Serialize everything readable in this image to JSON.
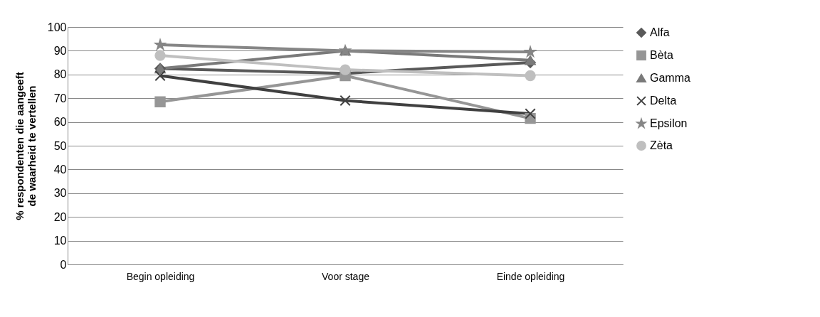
{
  "chart_data": {
    "type": "line",
    "ylabel": [
      "% respondenten die aangeeft",
      "de waarheid te vertellen"
    ],
    "categories": [
      "Begin opleiding",
      "Voor stage",
      "Einde opleiding"
    ],
    "series": [
      {
        "name": "Alfa",
        "color": "#595959",
        "marker": "diamond",
        "values": [
          82.5,
          80.5,
          85
        ]
      },
      {
        "name": "Bèta",
        "color": "#969696",
        "marker": "square",
        "values": [
          68.5,
          79.5,
          61.5
        ]
      },
      {
        "name": "Gamma",
        "color": "#7a7a7a",
        "marker": "triangle",
        "values": [
          82.5,
          90,
          86
        ]
      },
      {
        "name": "Delta",
        "color": "#404040",
        "marker": "cross",
        "values": [
          79.5,
          69,
          63.5
        ]
      },
      {
        "name": "Epsilon",
        "color": "#868686",
        "marker": "star",
        "values": [
          92.5,
          90,
          89.5
        ]
      },
      {
        "name": "Zèta",
        "color": "#bfbfbf",
        "marker": "circle",
        "values": [
          88,
          82,
          79.5
        ]
      }
    ],
    "ylim": [
      0,
      100
    ],
    "yticks": [
      0,
      10,
      20,
      30,
      40,
      50,
      60,
      70,
      80,
      90,
      100
    ],
    "grid": "y",
    "legend": "right",
    "line_style": "solid"
  }
}
